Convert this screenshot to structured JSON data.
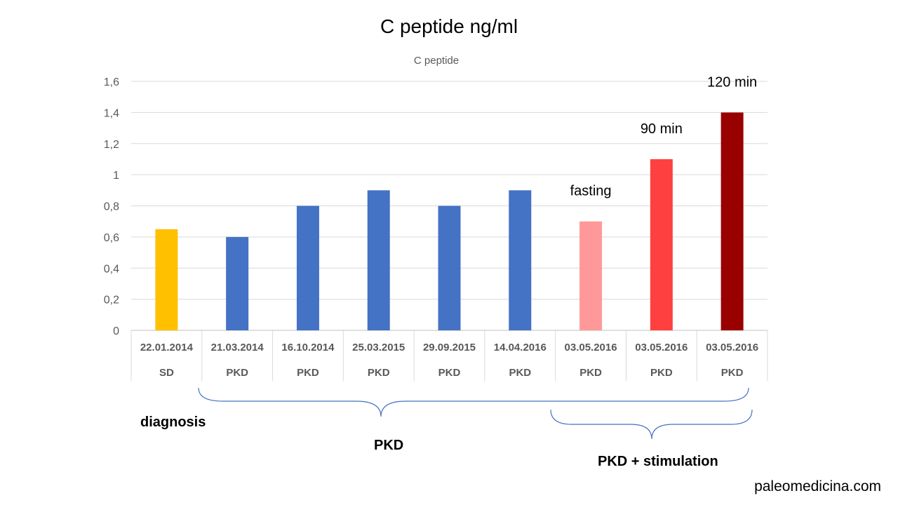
{
  "slide": {
    "title": "C peptide ng/ml",
    "watermark": "paleomedicina.com"
  },
  "brace_labels": {
    "diagnosis": "diagnosis",
    "pkd": "PKD",
    "stimulation": "PKD + stimulation"
  },
  "chart_data": {
    "type": "bar",
    "title": "C peptide",
    "xlabel": "",
    "ylabel": "",
    "ylim": [
      0,
      1.6
    ],
    "yticks": [
      "0",
      "0,2",
      "0,4",
      "0,6",
      "0,8",
      "1",
      "1,2",
      "1,4",
      "1,6"
    ],
    "grid": true,
    "categories": [
      {
        "date": "22.01.2014",
        "group": "SD"
      },
      {
        "date": "21.03.2014",
        "group": "PKD"
      },
      {
        "date": "16.10.2014",
        "group": "PKD"
      },
      {
        "date": "25.03.2015",
        "group": "PKD"
      },
      {
        "date": "29.09.2015",
        "group": "PKD"
      },
      {
        "date": "14.04.2016",
        "group": "PKD"
      },
      {
        "date": "03.05.2016",
        "group": "PKD"
      },
      {
        "date": "03.05.2016",
        "group": "PKD"
      },
      {
        "date": "03.05.2016",
        "group": "PKD"
      }
    ],
    "values": [
      0.65,
      0.6,
      0.8,
      0.9,
      0.8,
      0.9,
      0.7,
      1.1,
      1.4
    ],
    "colors": [
      "#FFC000",
      "#4472C4",
      "#4472C4",
      "#4472C4",
      "#4472C4",
      "#4472C4",
      "#FF9999",
      "#FF4040",
      "#990000"
    ],
    "bar_annotations": [
      "",
      "",
      "",
      "",
      "",
      "",
      "fasting",
      "90 min",
      "120 min"
    ]
  }
}
